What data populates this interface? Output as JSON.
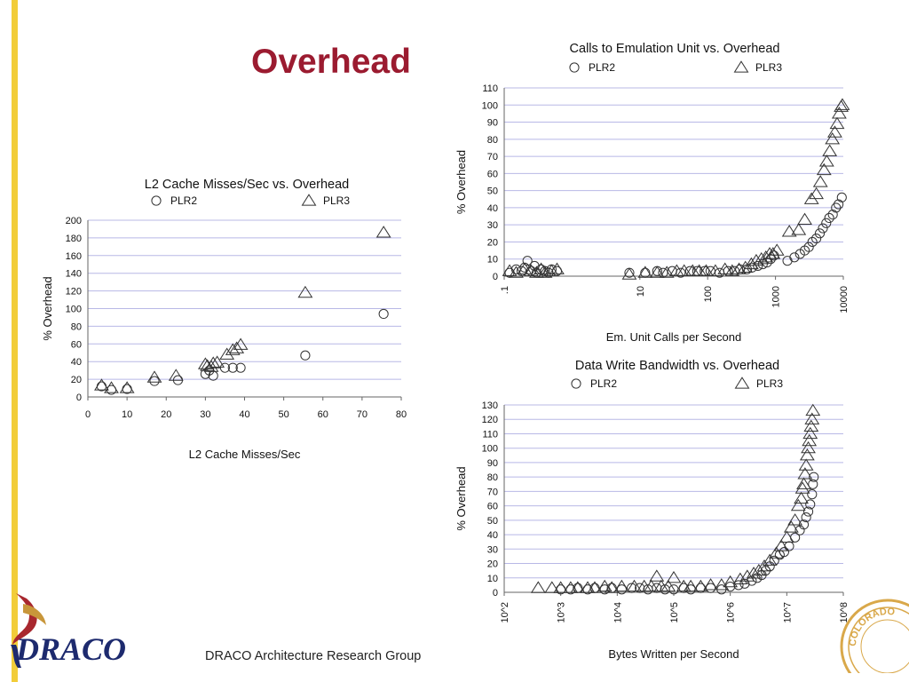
{
  "slide": {
    "title": "Overhead",
    "footer": "DRACO Architecture Research Group",
    "logo_text": "DRACO",
    "seal_text": "COLORADO",
    "colors": {
      "title": "#9b1b30",
      "accent_bar": "#f2cd3a",
      "grid": "#b8b8e6",
      "logo": "#1d2a6e",
      "seal": "#d9a84a"
    }
  },
  "chart_data": [
    {
      "id": "l2",
      "type": "scatter",
      "title": "L2 Cache Misses/Sec vs. Overhead",
      "xlabel": "L2 Cache Misses/Sec",
      "ylabel": "% Overhead",
      "x_scale": "linear",
      "xlim": [
        0,
        80
      ],
      "ylim": [
        0,
        200
      ],
      "xticks": [
        0,
        10,
        20,
        30,
        40,
        50,
        60,
        70,
        80
      ],
      "xtick_labels": [
        "0",
        "10",
        "20",
        "30",
        "40",
        "50",
        "60",
        "70",
        "80"
      ],
      "yticks": [
        0,
        20,
        40,
        60,
        80,
        100,
        120,
        140,
        160,
        180,
        200
      ],
      "ytick_labels": [
        "0",
        "20",
        "40",
        "60",
        "80",
        "100",
        "120",
        "140",
        "160",
        "180",
        "200"
      ],
      "legend": "top",
      "grid": "horizontal",
      "series": [
        {
          "name": "PLR2",
          "marker": "circle",
          "points": [
            [
              3.5,
              12
            ],
            [
              6,
              8
            ],
            [
              10,
              9
            ],
            [
              17,
              18
            ],
            [
              23,
              19
            ],
            [
              30,
              26
            ],
            [
              31,
              30
            ],
            [
              32,
              24
            ],
            [
              35,
              33
            ],
            [
              37,
              33
            ],
            [
              39,
              33
            ],
            [
              55.5,
              47
            ],
            [
              75.5,
              94
            ]
          ]
        },
        {
          "name": "PLR3",
          "marker": "triangle",
          "points": [
            [
              3.5,
              13
            ],
            [
              6,
              10
            ],
            [
              10,
              10
            ],
            [
              17,
              22
            ],
            [
              22.5,
              24
            ],
            [
              30,
              37
            ],
            [
              30.5,
              35
            ],
            [
              31.5,
              34
            ],
            [
              32,
              38
            ],
            [
              33,
              39
            ],
            [
              35.5,
              48
            ],
            [
              37,
              53
            ],
            [
              38,
              55
            ],
            [
              39,
              59
            ],
            [
              55.5,
              118
            ],
            [
              75.5,
              186
            ]
          ]
        }
      ]
    },
    {
      "id": "emu",
      "type": "scatter",
      "title": "Calls to Emulation Unit vs. Overhead",
      "xlabel": "Em. Unit Calls per Second",
      "ylabel": "% Overhead",
      "x_scale": "log",
      "xlim": [
        0.1,
        10000
      ],
      "ylim": [
        0,
        110
      ],
      "xticks": [
        0.1,
        10,
        100,
        1000,
        10000
      ],
      "xtick_labels": [
        ".1",
        "10",
        "100",
        "1000",
        "10000"
      ],
      "yticks": [
        0,
        10,
        20,
        30,
        40,
        50,
        60,
        70,
        80,
        90,
        100,
        110
      ],
      "ytick_labels": [
        "0",
        "10",
        "20",
        "30",
        "40",
        "50",
        "60",
        "70",
        "80",
        "90",
        "100",
        "110"
      ],
      "legend": "top",
      "grid": "horizontal",
      "series": [
        {
          "name": "PLR2",
          "marker": "circle",
          "points": [
            [
              0.12,
              2
            ],
            [
              0.15,
              4
            ],
            [
              0.18,
              3
            ],
            [
              0.2,
              5
            ],
            [
              0.22,
              9
            ],
            [
              0.25,
              3
            ],
            [
              0.28,
              6
            ],
            [
              0.3,
              2
            ],
            [
              0.35,
              4
            ],
            [
              0.4,
              3
            ],
            [
              0.45,
              2
            ],
            [
              0.5,
              4
            ],
            [
              0.6,
              3
            ],
            [
              7,
              2
            ],
            [
              12,
              2
            ],
            [
              18,
              3
            ],
            [
              22,
              2
            ],
            [
              30,
              3
            ],
            [
              40,
              2
            ],
            [
              55,
              3
            ],
            [
              70,
              3
            ],
            [
              90,
              3
            ],
            [
              110,
              3
            ],
            [
              150,
              2
            ],
            [
              200,
              3
            ],
            [
              250,
              3
            ],
            [
              300,
              4
            ],
            [
              380,
              4
            ],
            [
              450,
              5
            ],
            [
              550,
              6
            ],
            [
              650,
              7
            ],
            [
              750,
              8
            ],
            [
              850,
              10
            ],
            [
              950,
              12
            ],
            [
              1500,
              9
            ],
            [
              1900,
              11
            ],
            [
              2300,
              13
            ],
            [
              2700,
              15
            ],
            [
              3100,
              17
            ],
            [
              3500,
              20
            ],
            [
              4000,
              22
            ],
            [
              4500,
              25
            ],
            [
              5000,
              28
            ],
            [
              5600,
              31
            ],
            [
              6200,
              34
            ],
            [
              7000,
              36
            ],
            [
              7800,
              40
            ],
            [
              8500,
              42
            ],
            [
              9500,
              46
            ]
          ]
        },
        {
          "name": "PLR3",
          "marker": "triangle",
          "points": [
            [
              0.12,
              3
            ],
            [
              0.15,
              2
            ],
            [
              0.2,
              4
            ],
            [
              0.25,
              3
            ],
            [
              0.3,
              2
            ],
            [
              0.35,
              4
            ],
            [
              0.4,
              2
            ],
            [
              0.5,
              3
            ],
            [
              0.6,
              4
            ],
            [
              7,
              1
            ],
            [
              12,
              2
            ],
            [
              18,
              2
            ],
            [
              25,
              2
            ],
            [
              35,
              3
            ],
            [
              45,
              3
            ],
            [
              60,
              3
            ],
            [
              75,
              3
            ],
            [
              95,
              3
            ],
            [
              130,
              3
            ],
            [
              180,
              4
            ],
            [
              230,
              3
            ],
            [
              290,
              4
            ],
            [
              360,
              5
            ],
            [
              440,
              7
            ],
            [
              520,
              9
            ],
            [
              620,
              10
            ],
            [
              720,
              11
            ],
            [
              820,
              13
            ],
            [
              920,
              13
            ],
            [
              1050,
              15
            ],
            [
              1600,
              26
            ],
            [
              2200,
              27
            ],
            [
              2700,
              33
            ],
            [
              3400,
              45
            ],
            [
              4000,
              48
            ],
            [
              4600,
              55
            ],
            [
              5200,
              62
            ],
            [
              5700,
              67
            ],
            [
              6300,
              73
            ],
            [
              6900,
              80
            ],
            [
              7500,
              84
            ],
            [
              8100,
              89
            ],
            [
              8700,
              95
            ],
            [
              9300,
              99
            ],
            [
              9700,
              100
            ]
          ]
        }
      ]
    },
    {
      "id": "bw",
      "type": "scatter",
      "title": "Data Write Bandwidth vs. Overhead",
      "xlabel": "Bytes Written per Second",
      "ylabel": "% Overhead",
      "x_scale": "log",
      "xlim": [
        100,
        100000000
      ],
      "ylim": [
        0,
        130
      ],
      "xticks": [
        100,
        1000,
        10000,
        100000,
        1000000,
        10000000,
        100000000
      ],
      "xtick_labels": [
        "10^2",
        "10^3",
        "10^4",
        "10^5",
        "10^6",
        "10^7",
        "10^8"
      ],
      "yticks": [
        0,
        10,
        20,
        30,
        40,
        50,
        60,
        70,
        80,
        90,
        100,
        110,
        120,
        130
      ],
      "ytick_labels": [
        "0",
        "10",
        "20",
        "30",
        "40",
        "50",
        "60",
        "70",
        "80",
        "90",
        "100",
        "110",
        "120",
        "130"
      ],
      "legend": "top",
      "grid": "horizontal",
      "series": [
        {
          "name": "PLR2",
          "marker": "circle",
          "points": [
            [
              1000,
              2
            ],
            [
              1500,
              2
            ],
            [
              2000,
              3
            ],
            [
              3000,
              2
            ],
            [
              4000,
              3
            ],
            [
              6000,
              2
            ],
            [
              8000,
              3
            ],
            [
              12000,
              2
            ],
            [
              18000,
              3
            ],
            [
              25000,
              3
            ],
            [
              35000,
              2
            ],
            [
              50000,
              3
            ],
            [
              70000,
              2
            ],
            [
              100000,
              2
            ],
            [
              150000,
              3
            ],
            [
              200000,
              2
            ],
            [
              300000,
              3
            ],
            [
              450000,
              3
            ],
            [
              700000,
              2
            ],
            [
              1000000,
              4
            ],
            [
              1400000,
              5
            ],
            [
              1800000,
              6
            ],
            [
              2400000,
              8
            ],
            [
              3000000,
              10
            ],
            [
              3600000,
              12
            ],
            [
              4200000,
              15
            ],
            [
              5000000,
              18
            ],
            [
              6000000,
              22
            ],
            [
              7500000,
              26
            ],
            [
              9000000,
              28
            ],
            [
              11000000,
              32
            ],
            [
              14000000,
              38
            ],
            [
              17000000,
              43
            ],
            [
              20000000,
              47
            ],
            [
              22000000,
              52
            ],
            [
              24000000,
              56
            ],
            [
              26000000,
              61
            ],
            [
              28000000,
              68
            ],
            [
              29000000,
              75
            ],
            [
              30000000,
              80
            ]
          ]
        },
        {
          "name": "PLR3",
          "marker": "triangle",
          "points": [
            [
              400,
              3
            ],
            [
              700,
              3
            ],
            [
              1000,
              3
            ],
            [
              1500,
              3
            ],
            [
              2000,
              3
            ],
            [
              3000,
              3
            ],
            [
              4000,
              3
            ],
            [
              6000,
              4
            ],
            [
              8000,
              3
            ],
            [
              12000,
              4
            ],
            [
              20000,
              4
            ],
            [
              30000,
              4
            ],
            [
              40000,
              4
            ],
            [
              50000,
              11
            ],
            [
              60000,
              4
            ],
            [
              80000,
              4
            ],
            [
              100000,
              10
            ],
            [
              150000,
              4
            ],
            [
              200000,
              4
            ],
            [
              300000,
              4
            ],
            [
              450000,
              5
            ],
            [
              700000,
              5
            ],
            [
              1000000,
              7
            ],
            [
              1500000,
              9
            ],
            [
              2000000,
              11
            ],
            [
              2600000,
              13
            ],
            [
              3200000,
              15
            ],
            [
              4000000,
              18
            ],
            [
              5000000,
              22
            ],
            [
              6500000,
              27
            ],
            [
              8000000,
              32
            ],
            [
              10000000,
              38
            ],
            [
              12000000,
              45
            ],
            [
              14000000,
              50
            ],
            [
              16000000,
              60
            ],
            [
              18000000,
              65
            ],
            [
              19000000,
              72
            ],
            [
              20000000,
              75
            ],
            [
              21000000,
              82
            ],
            [
              22000000,
              88
            ],
            [
              23000000,
              95
            ],
            [
              24000000,
              100
            ],
            [
              25000000,
              105
            ],
            [
              26000000,
              110
            ],
            [
              27000000,
              115
            ],
            [
              28000000,
              120
            ],
            [
              29000000,
              126
            ]
          ]
        }
      ]
    }
  ]
}
